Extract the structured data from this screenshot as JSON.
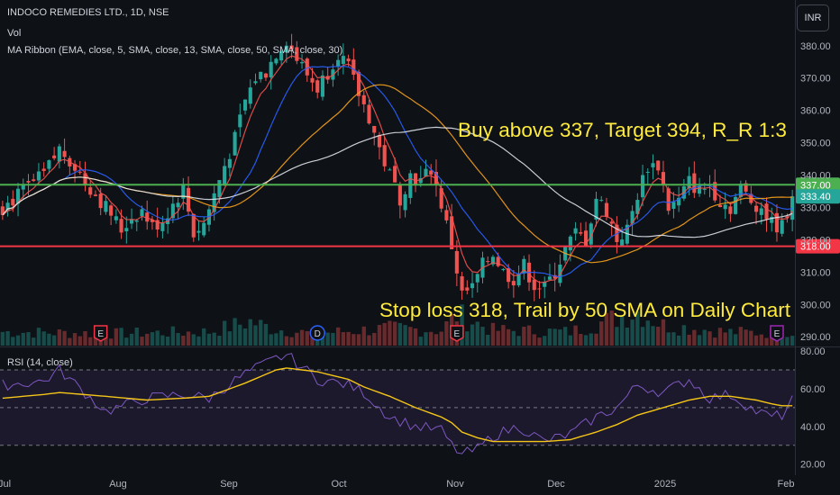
{
  "header": {
    "title": "INDOCO REMEDIES LTD., 1D, NSE",
    "volume_label": "Vol",
    "ma_ribbon_label": "MA Ribbon (EMA, close, 5, SMA, close, 13, SMA, close, 50, SMA, close, 30)",
    "currency": "INR"
  },
  "annotations": {
    "buy_text": "Buy above 337, Target 394, R_R 1:3",
    "stop_text": "Stop loss 318, Trail by 50 SMA on Daily Chart"
  },
  "rsi_label": "RSI (14, close)",
  "colors": {
    "background": "#0e1116",
    "up": "#26a69a",
    "down": "#ef5350",
    "annotation_text": "#ffeb3b",
    "green_line": "#4caf50",
    "red_line": "#f23645",
    "ema5": "#ef5350",
    "sma13": "#2962ff",
    "sma50": "#e0e3eb",
    "sma30": "#f7a21b",
    "rsi_line": "#7e57c2",
    "rsi_ma": "#f5c518",
    "event_e": "#f23645",
    "event_e_last": "#9c27b0",
    "event_d": "#2962ff"
  },
  "chart_data": [
    {
      "type": "candlestick",
      "title": "INDOCO REMEDIES LTD., 1D, NSE",
      "x_tick_labels": [
        "Jul",
        "Aug",
        "Sep",
        "Oct",
        "Nov",
        "Dec",
        "2025",
        "Feb"
      ],
      "y_tick_labels": [
        290,
        300,
        310,
        320,
        330,
        340,
        350,
        360,
        370,
        380
      ],
      "ylim": [
        287,
        388
      ],
      "last_close": 333.4,
      "last_close_label": "333.40",
      "horizontal_levels": [
        {
          "name": "buy-level",
          "value": 337,
          "label": "337.00"
        },
        {
          "name": "stop-level",
          "value": 318,
          "label": "318.00"
        }
      ],
      "close_path": [
        [
          0,
          330
        ],
        [
          4,
          335
        ],
        [
          8,
          340
        ],
        [
          11,
          348
        ],
        [
          13,
          345
        ],
        [
          16,
          338
        ],
        [
          19,
          332
        ],
        [
          21,
          328
        ],
        [
          23,
          323
        ],
        [
          25,
          327
        ],
        [
          27,
          329
        ],
        [
          29,
          324
        ],
        [
          31,
          326
        ],
        [
          33,
          331
        ],
        [
          35,
          336
        ],
        [
          37,
          322
        ],
        [
          39,
          325
        ],
        [
          41,
          334
        ],
        [
          43,
          343
        ],
        [
          45,
          351
        ],
        [
          47,
          363
        ],
        [
          49,
          370
        ],
        [
          51,
          372
        ],
        [
          53,
          378
        ],
        [
          55,
          382
        ],
        [
          57,
          376
        ],
        [
          59,
          371
        ],
        [
          61,
          367
        ],
        [
          63,
          372
        ],
        [
          65,
          378
        ],
        [
          67,
          373
        ],
        [
          69,
          365
        ],
        [
          71,
          358
        ],
        [
          73,
          348
        ],
        [
          75,
          340
        ],
        [
          77,
          333
        ],
        [
          79,
          340
        ],
        [
          81,
          338
        ],
        [
          83,
          342
        ],
        [
          85,
          331
        ],
        [
          87,
          318
        ],
        [
          89,
          303
        ],
        [
          91,
          305
        ],
        [
          93,
          312
        ],
        [
          95,
          316
        ],
        [
          97,
          310
        ],
        [
          99,
          308
        ],
        [
          101,
          312
        ],
        [
          103,
          306
        ],
        [
          105,
          305
        ],
        [
          107,
          310
        ],
        [
          109,
          317
        ],
        [
          111,
          322
        ],
        [
          113,
          320
        ],
        [
          115,
          333
        ],
        [
          117,
          329
        ],
        [
          119,
          320
        ],
        [
          121,
          323
        ],
        [
          123,
          334
        ],
        [
          125,
          343
        ],
        [
          127,
          343
        ],
        [
          129,
          330
        ],
        [
          131,
          332
        ],
        [
          133,
          338
        ],
        [
          135,
          335
        ],
        [
          137,
          337
        ],
        [
          139,
          332
        ],
        [
          141,
          330
        ],
        [
          143,
          336
        ],
        [
          145,
          332
        ],
        [
          147,
          330
        ],
        [
          149,
          325
        ],
        [
          151,
          324
        ],
        [
          153,
          333.4
        ]
      ],
      "volume_profile": [
        [
          0,
          0.4
        ],
        [
          20,
          0.35
        ],
        [
          40,
          0.4
        ],
        [
          48,
          0.7
        ],
        [
          52,
          0.5
        ],
        [
          60,
          0.35
        ],
        [
          75,
          0.5
        ],
        [
          85,
          0.45
        ],
        [
          88,
          0.9
        ],
        [
          95,
          0.45
        ],
        [
          110,
          0.4
        ],
        [
          123,
          1.0
        ],
        [
          128,
          0.6
        ],
        [
          140,
          0.4
        ],
        [
          153,
          0.35
        ]
      ],
      "events": [
        {
          "day": 19,
          "label": "E"
        },
        {
          "day": 61,
          "label": "D"
        },
        {
          "day": 88,
          "label": "E"
        },
        {
          "day": 150,
          "label": "E"
        }
      ]
    },
    {
      "type": "line",
      "title": "RSI (14, close)",
      "y_tick_labels": [
        "80.00",
        "60.00",
        "40.00",
        "20.00"
      ],
      "ylim": [
        17,
        81
      ],
      "band_levels": [
        70,
        50,
        30
      ],
      "x": [
        0,
        8,
        11,
        20,
        28,
        35,
        40,
        47,
        53,
        55,
        61,
        67,
        70,
        75,
        80,
        85,
        87,
        89,
        92,
        95,
        100,
        105,
        110,
        115,
        119,
        123,
        128,
        133,
        137,
        141,
        146,
        149,
        151,
        153
      ],
      "series": [
        {
          "name": "RSI",
          "values": [
            62,
            64,
            70,
            48,
            55,
            57,
            55,
            68,
            76,
            78,
            65,
            62,
            58,
            45,
            40,
            38,
            30,
            25,
            28,
            35,
            40,
            32,
            36,
            45,
            50,
            62,
            58,
            65,
            55,
            57,
            48,
            45,
            46,
            54
          ]
        },
        {
          "name": "RSI-MA",
          "values": [
            55,
            57,
            58,
            56,
            54,
            55,
            56,
            63,
            70,
            71,
            69,
            65,
            61,
            56,
            50,
            45,
            42,
            37,
            34,
            32,
            32,
            32,
            33,
            37,
            41,
            46,
            50,
            54,
            56,
            56,
            54,
            52,
            51,
            51
          ]
        }
      ]
    }
  ]
}
